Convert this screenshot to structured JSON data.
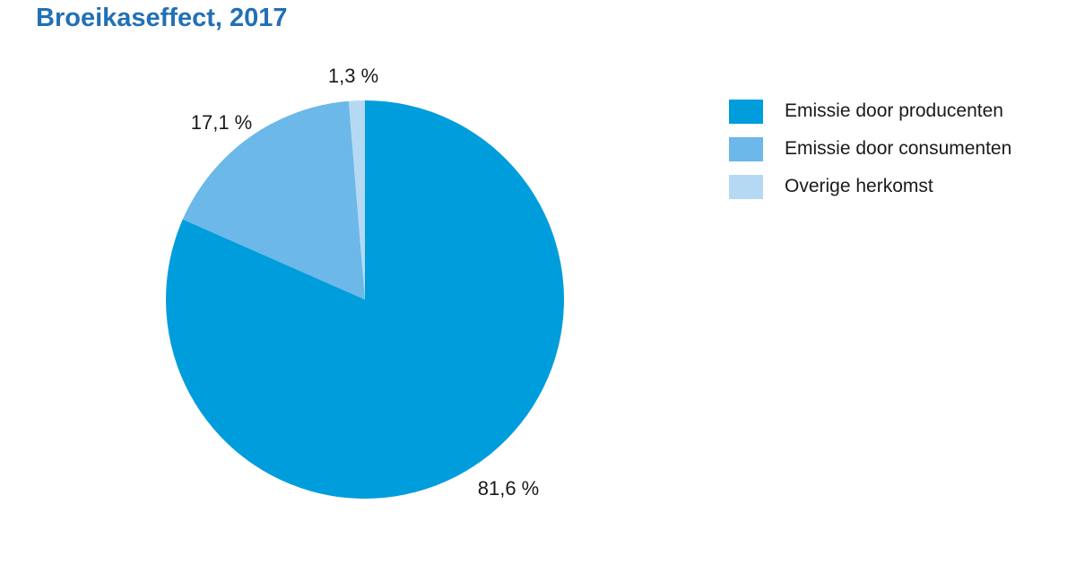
{
  "colors": {
    "title": "#2270B5",
    "label_text": "#1A1A1A",
    "background": "#FFFFFF"
  },
  "chart_data": {
    "type": "pie",
    "title": "Broeikaseffect, 2017",
    "direction": "clockwise",
    "start_angle_deg": 0,
    "legend_position": "right",
    "value_unit": "%",
    "slices": [
      {
        "name": "Emissie door producenten",
        "value": 81.6,
        "label": "81,6 %",
        "color": "#009DDC"
      },
      {
        "name": "Emissie door consumenten",
        "value": 17.1,
        "label": "17,1 %",
        "color": "#6BB8E9"
      },
      {
        "name": "Overige herkomst",
        "value": 1.3,
        "label": "1,3 %",
        "color": "#B6D9F3"
      }
    ]
  }
}
